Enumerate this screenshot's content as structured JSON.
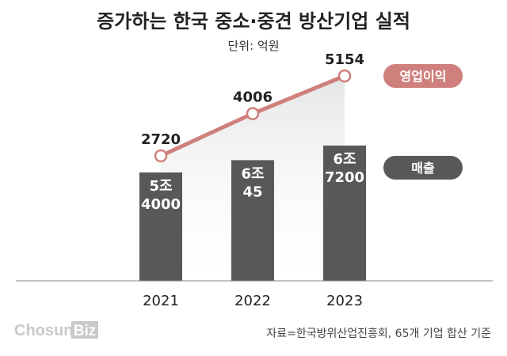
{
  "title": "증가하는 한국 중소·중견 방산기업 실적",
  "unit_text": "단위: 억원",
  "source_text": "자료=한국방위산업진흥회, 65개 기업 합산 기준",
  "logo": {
    "part1": "Chosun",
    "part2": "Biz"
  },
  "colors": {
    "bar": "#58585a",
    "line": "#cf7f7c",
    "area": "#e6e6e6",
    "baseline": "#888888"
  },
  "chart_data": {
    "type": "bar",
    "categories": [
      "2021",
      "2022",
      "2023"
    ],
    "series": [
      {
        "name": "매출",
        "values": [
          54000,
          60045,
          67200
        ],
        "labels": [
          [
            "5조",
            "4000"
          ],
          [
            "6조",
            "45"
          ],
          [
            "6조",
            "7200"
          ]
        ]
      },
      {
        "name": "영업이익",
        "type": "line",
        "values": [
          2720,
          4006,
          5154
        ],
        "labels": [
          "2720",
          "4006",
          "5154"
        ]
      }
    ],
    "title": "증가하는 한국 중소·중견 방산기업 실적",
    "unit": "단위: 억원",
    "legend": [
      "영업이익",
      "매출"
    ],
    "legend_position": "right",
    "grid": false
  }
}
